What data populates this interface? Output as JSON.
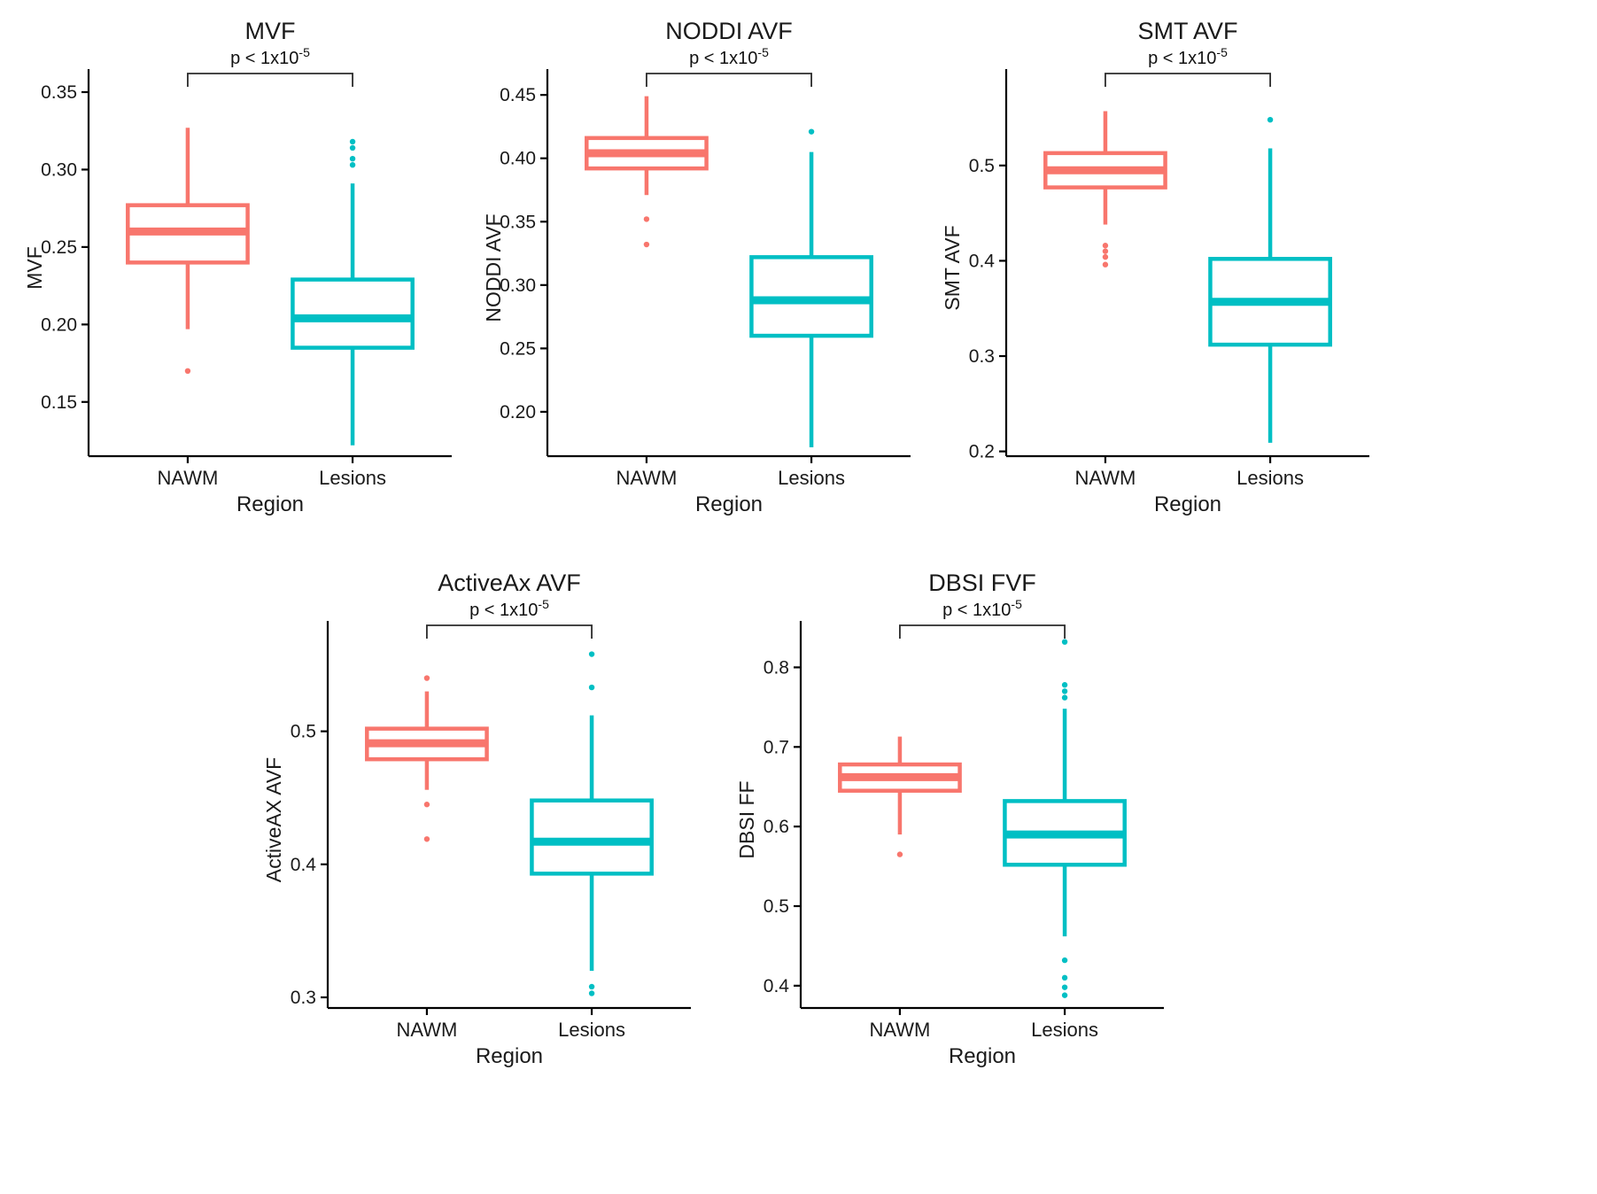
{
  "page": {
    "background": "#ffffff",
    "group_colors": {
      "NAWM": "#F8766D",
      "Lesions": "#00BFC4"
    }
  },
  "chart_data": [
    {
      "type": "box",
      "title": "MVF",
      "xlabel": "Region",
      "ylabel": "MVF",
      "categories": [
        "NAWM",
        "Lesions"
      ],
      "ylim": [
        0.115,
        0.358
      ],
      "yticks": [
        0.15,
        0.2,
        0.25,
        0.3,
        0.35
      ],
      "ytick_labels": [
        "0.15",
        "0.20",
        "0.25",
        "0.30",
        "0.35"
      ],
      "grid": false,
      "legend": "none",
      "p_annotation": {
        "base": "p < 1x10",
        "sup": "-5"
      },
      "series": [
        {
          "name": "NAWM",
          "color": "#F8766D",
          "whisker_low": 0.197,
          "q1": 0.24,
          "median": 0.26,
          "q3": 0.277,
          "whisker_high": 0.327,
          "outliers": [
            0.17
          ]
        },
        {
          "name": "Lesions",
          "color": "#00BFC4",
          "whisker_low": 0.122,
          "q1": 0.185,
          "median": 0.204,
          "q3": 0.229,
          "whisker_high": 0.291,
          "outliers": [
            0.303,
            0.307,
            0.314,
            0.318
          ]
        }
      ]
    },
    {
      "type": "box",
      "title": "NODDI AVF",
      "xlabel": "Region",
      "ylabel": "NODDI AVF",
      "categories": [
        "NAWM",
        "Lesions"
      ],
      "ylim": [
        0.165,
        0.462
      ],
      "yticks": [
        0.2,
        0.25,
        0.3,
        0.35,
        0.4,
        0.45
      ],
      "ytick_labels": [
        "0.20",
        "0.25",
        "0.30",
        "0.35",
        "0.40",
        "0.45"
      ],
      "grid": false,
      "legend": "none",
      "p_annotation": {
        "base": "p < 1x10",
        "sup": "-5"
      },
      "series": [
        {
          "name": "NAWM",
          "color": "#F8766D",
          "whisker_low": 0.371,
          "q1": 0.392,
          "median": 0.404,
          "q3": 0.416,
          "whisker_high": 0.449,
          "outliers": [
            0.352,
            0.332
          ]
        },
        {
          "name": "Lesions",
          "color": "#00BFC4",
          "whisker_low": 0.172,
          "q1": 0.26,
          "median": 0.288,
          "q3": 0.322,
          "whisker_high": 0.405,
          "outliers": [
            0.421
          ]
        }
      ]
    },
    {
      "type": "box",
      "title": "SMT AVF",
      "xlabel": "Region",
      "ylabel": "SMT AVF",
      "categories": [
        "NAWM",
        "Lesions"
      ],
      "ylim": [
        0.195,
        0.59
      ],
      "yticks": [
        0.2,
        0.3,
        0.4,
        0.5
      ],
      "ytick_labels": [
        "0.2",
        "0.3",
        "0.4",
        "0.5"
      ],
      "grid": false,
      "legend": "none",
      "p_annotation": {
        "base": "p < 1x10",
        "sup": "-5"
      },
      "series": [
        {
          "name": "NAWM",
          "color": "#F8766D",
          "whisker_low": 0.438,
          "q1": 0.477,
          "median": 0.495,
          "q3": 0.513,
          "whisker_high": 0.557,
          "outliers": [
            0.416,
            0.41,
            0.404,
            0.396
          ]
        },
        {
          "name": "Lesions",
          "color": "#00BFC4",
          "whisker_low": 0.209,
          "q1": 0.312,
          "median": 0.357,
          "q3": 0.402,
          "whisker_high": 0.518,
          "outliers": [
            0.548
          ]
        }
      ]
    },
    {
      "type": "box",
      "title": "ActiveAx AVF",
      "xlabel": "Region",
      "ylabel": "ActiveAX AVF",
      "categories": [
        "NAWM",
        "Lesions"
      ],
      "ylim": [
        0.292,
        0.575
      ],
      "yticks": [
        0.3,
        0.4,
        0.5
      ],
      "ytick_labels": [
        "0.3",
        "0.4",
        "0.5"
      ],
      "grid": false,
      "legend": "none",
      "p_annotation": {
        "base": "p < 1x10",
        "sup": "-5"
      },
      "series": [
        {
          "name": "NAWM",
          "color": "#F8766D",
          "whisker_low": 0.456,
          "q1": 0.479,
          "median": 0.491,
          "q3": 0.502,
          "whisker_high": 0.53,
          "outliers": [
            0.54,
            0.445,
            0.419
          ]
        },
        {
          "name": "Lesions",
          "color": "#00BFC4",
          "whisker_low": 0.32,
          "q1": 0.393,
          "median": 0.417,
          "q3": 0.448,
          "whisker_high": 0.512,
          "outliers": [
            0.558,
            0.533,
            0.308,
            0.303
          ]
        }
      ]
    },
    {
      "type": "box",
      "title": "DBSI FVF",
      "xlabel": "Region",
      "ylabel": "DBSI FF",
      "categories": [
        "NAWM",
        "Lesions"
      ],
      "ylim": [
        0.372,
        0.845
      ],
      "yticks": [
        0.4,
        0.5,
        0.6,
        0.7,
        0.8
      ],
      "ytick_labels": [
        "0.4",
        "0.5",
        "0.6",
        "0.7",
        "0.8"
      ],
      "grid": false,
      "legend": "none",
      "p_annotation": {
        "base": "p < 1x10",
        "sup": "-5"
      },
      "series": [
        {
          "name": "NAWM",
          "color": "#F8766D",
          "whisker_low": 0.59,
          "q1": 0.645,
          "median": 0.662,
          "q3": 0.678,
          "whisker_high": 0.713,
          "outliers": [
            0.565
          ]
        },
        {
          "name": "Lesions",
          "color": "#00BFC4",
          "whisker_low": 0.462,
          "q1": 0.552,
          "median": 0.59,
          "q3": 0.632,
          "whisker_high": 0.748,
          "outliers": [
            0.832,
            0.778,
            0.77,
            0.762,
            0.432,
            0.41,
            0.398,
            0.388
          ]
        }
      ]
    }
  ]
}
